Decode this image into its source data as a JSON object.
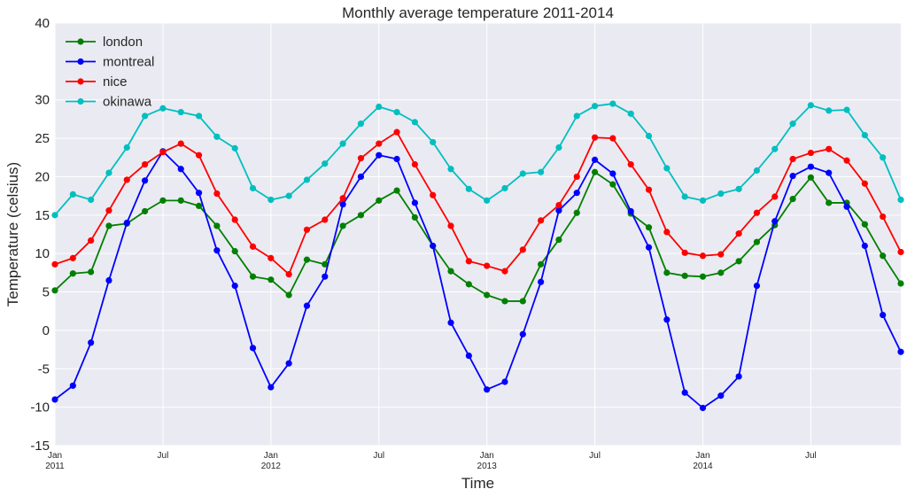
{
  "chart_data": {
    "type": "line",
    "title": "Monthly average temperature 2011-2014",
    "xlabel": "Time",
    "ylabel": "Temperature (celsius)",
    "ylim": [
      -15,
      40
    ],
    "yticks": [
      -15,
      -10,
      -5,
      0,
      5,
      10,
      15,
      20,
      25,
      30,
      40
    ],
    "grid": true,
    "legend_position": "top-left",
    "x_start": "2011-01",
    "x_end": "2014-12",
    "x_ticks": [
      {
        "month_index": 0,
        "label": "Jan",
        "sublabel": "2011"
      },
      {
        "month_index": 6,
        "label": "Jul",
        "sublabel": ""
      },
      {
        "month_index": 12,
        "label": "Jan",
        "sublabel": "2012"
      },
      {
        "month_index": 18,
        "label": "Jul",
        "sublabel": ""
      },
      {
        "month_index": 24,
        "label": "Jan",
        "sublabel": "2013"
      },
      {
        "month_index": 30,
        "label": "Jul",
        "sublabel": ""
      },
      {
        "month_index": 36,
        "label": "Jan",
        "sublabel": "2014"
      },
      {
        "month_index": 42,
        "label": "Jul",
        "sublabel": ""
      }
    ],
    "series": [
      {
        "name": "london",
        "color": "#008000",
        "values": [
          5.2,
          7.4,
          7.6,
          13.6,
          13.9,
          15.5,
          16.9,
          16.9,
          16.2,
          13.6,
          10.3,
          7.0,
          6.6,
          4.6,
          9.2,
          8.6,
          13.6,
          15.0,
          16.9,
          18.2,
          14.7,
          11.0,
          7.7,
          6.0,
          4.6,
          3.8,
          3.8,
          8.6,
          11.8,
          15.3,
          20.6,
          19.0,
          15.2,
          13.4,
          7.5,
          7.1,
          7.0,
          7.5,
          9.0,
          11.5,
          13.7,
          17.1,
          19.9,
          16.6,
          16.6,
          13.8,
          9.7,
          6.1
        ]
      },
      {
        "name": "montreal",
        "color": "#0000ff",
        "values": [
          -9.0,
          -7.2,
          -1.6,
          6.5,
          14.0,
          19.5,
          23.3,
          21.0,
          17.9,
          10.4,
          5.8,
          -2.3,
          -7.4,
          -4.3,
          3.2,
          7.0,
          16.4,
          20.0,
          22.8,
          22.3,
          16.6,
          11.0,
          1.0,
          -3.3,
          -7.7,
          -6.7,
          -0.5,
          6.3,
          15.6,
          17.9,
          22.2,
          20.4,
          15.5,
          10.8,
          1.4,
          -8.1,
          -10.1,
          -8.5,
          -6.0,
          5.8,
          14.2,
          20.1,
          21.3,
          20.5,
          16.1,
          11.0,
          2.0,
          -2.8
        ]
      },
      {
        "name": "nice",
        "color": "#ff0000",
        "values": [
          8.6,
          9.4,
          11.7,
          15.6,
          19.6,
          21.6,
          23.2,
          24.3,
          22.8,
          17.8,
          14.4,
          10.9,
          9.4,
          7.3,
          13.1,
          14.4,
          17.2,
          22.4,
          24.3,
          25.8,
          21.6,
          17.6,
          13.6,
          9.0,
          8.4,
          7.7,
          10.5,
          14.3,
          16.3,
          20.0,
          25.1,
          25.0,
          21.6,
          18.3,
          12.8,
          10.1,
          9.7,
          9.9,
          12.6,
          15.3,
          17.4,
          22.3,
          23.1,
          23.6,
          22.1,
          19.1,
          14.8,
          10.2
        ]
      },
      {
        "name": "okinawa",
        "color": "#00bfbf",
        "values": [
          15.0,
          17.7,
          17.0,
          20.5,
          23.8,
          27.9,
          28.9,
          28.4,
          27.9,
          25.2,
          23.7,
          18.5,
          17.0,
          17.5,
          19.6,
          21.7,
          24.3,
          26.9,
          29.1,
          28.4,
          27.1,
          24.5,
          21.0,
          18.4,
          16.9,
          18.5,
          20.4,
          20.6,
          23.8,
          27.9,
          29.2,
          29.5,
          28.2,
          25.3,
          21.1,
          17.4,
          16.9,
          17.8,
          18.4,
          20.8,
          23.6,
          26.9,
          29.3,
          28.6,
          28.7,
          25.4,
          22.5,
          17.0
        ]
      }
    ]
  }
}
